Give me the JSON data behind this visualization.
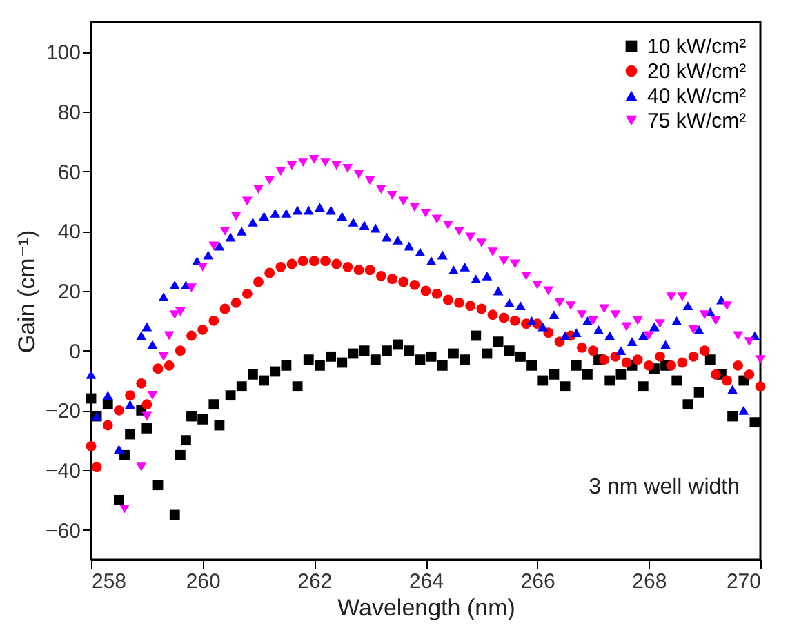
{
  "chart_data": {
    "type": "scatter",
    "xlabel": "Wavelength (nm)",
    "ylabel": "Gain (cm⁻¹)",
    "xlim": [
      258,
      270
    ],
    "ylim": [
      -70,
      110
    ],
    "xticks": [
      258,
      260,
      262,
      264,
      266,
      268,
      270
    ],
    "yticks": [
      -60,
      -40,
      -20,
      0,
      20,
      40,
      60,
      80,
      100
    ],
    "grid": false,
    "legend": "top right",
    "annotations": [
      "3 nm well width"
    ],
    "series": [
      {
        "name": "10 kW/cm²",
        "color": "#000000",
        "marker": "square",
        "x": [
          258.0,
          258.1,
          258.3,
          258.5,
          258.6,
          258.7,
          258.9,
          259.0,
          259.2,
          259.5,
          259.6,
          259.7,
          259.8,
          260.0,
          260.2,
          260.3,
          260.5,
          260.7,
          260.9,
          261.1,
          261.3,
          261.5,
          261.7,
          261.9,
          262.1,
          262.3,
          262.5,
          262.7,
          262.9,
          263.1,
          263.3,
          263.5,
          263.7,
          263.9,
          264.1,
          264.3,
          264.5,
          264.7,
          264.9,
          265.1,
          265.3,
          265.5,
          265.7,
          265.9,
          266.1,
          266.3,
          266.5,
          266.7,
          266.9,
          267.1,
          267.3,
          267.5,
          267.7,
          267.9,
          268.1,
          268.3,
          268.5,
          268.7,
          268.9,
          269.1,
          269.3,
          269.5,
          269.7,
          269.9
        ],
        "values": [
          -16,
          -22,
          -18,
          -50,
          -35,
          -28,
          -20,
          -26,
          -45,
          -55,
          -35,
          -30,
          -22,
          -23,
          -18,
          -25,
          -15,
          -12,
          -8,
          -10,
          -7,
          -5,
          -12,
          -3,
          -5,
          -2,
          -4,
          -1,
          0,
          -3,
          0,
          2,
          0,
          -3,
          -2,
          -5,
          -1,
          -3,
          5,
          -1,
          3,
          0,
          -2,
          -5,
          -10,
          -8,
          -12,
          -5,
          -8,
          -3,
          -10,
          -8,
          -5,
          -12,
          -6,
          -5,
          -10,
          -18,
          -14,
          -3,
          -8,
          -22,
          -10,
          -24
        ]
      },
      {
        "name": "20 kW/cm²",
        "color": "#ff0000",
        "marker": "circle",
        "x": [
          258.0,
          258.1,
          258.3,
          258.5,
          258.7,
          258.9,
          259.0,
          259.2,
          259.4,
          259.6,
          259.8,
          260.0,
          260.2,
          260.4,
          260.6,
          260.8,
          261.0,
          261.2,
          261.4,
          261.6,
          261.8,
          262.0,
          262.2,
          262.4,
          262.6,
          262.8,
          263.0,
          263.2,
          263.4,
          263.6,
          263.8,
          264.0,
          264.2,
          264.4,
          264.6,
          264.8,
          265.0,
          265.2,
          265.4,
          265.6,
          265.8,
          266.0,
          266.2,
          266.4,
          266.6,
          266.8,
          267.0,
          267.2,
          267.4,
          267.6,
          267.8,
          268.0,
          268.2,
          268.4,
          268.6,
          268.8,
          269.0,
          269.2,
          269.4,
          269.6,
          269.8,
          270.0
        ],
        "values": [
          -32,
          -39,
          -25,
          -20,
          -15,
          -11,
          -18,
          -6,
          -5,
          0,
          5,
          7,
          10,
          14,
          16,
          19,
          23,
          26,
          28,
          29,
          30,
          30,
          30,
          29,
          28,
          27,
          27,
          25,
          24,
          23,
          22,
          20,
          19,
          17,
          16,
          15,
          14,
          12,
          11,
          10,
          9,
          9,
          6,
          3,
          5,
          1,
          0,
          -3,
          -2,
          -4,
          -3,
          -5,
          -2,
          -5,
          -4,
          -2,
          0,
          -8,
          -10,
          -5,
          -8,
          -12
        ]
      },
      {
        "name": "40 kW/cm²",
        "color": "#0000ff",
        "marker": "triangle",
        "x": [
          258.0,
          258.1,
          258.3,
          258.5,
          258.7,
          258.9,
          259.0,
          259.1,
          259.3,
          259.5,
          259.7,
          259.9,
          260.1,
          260.3,
          260.5,
          260.7,
          260.9,
          261.1,
          261.3,
          261.5,
          261.7,
          261.9,
          262.1,
          262.3,
          262.5,
          262.7,
          262.9,
          263.1,
          263.3,
          263.5,
          263.7,
          263.9,
          264.1,
          264.3,
          264.5,
          264.7,
          264.9,
          265.1,
          265.3,
          265.5,
          265.7,
          265.9,
          266.1,
          266.3,
          266.5,
          266.7,
          266.9,
          267.1,
          267.3,
          267.5,
          267.7,
          267.9,
          268.1,
          268.3,
          268.5,
          268.7,
          268.9,
          269.1,
          269.3,
          269.5,
          269.7,
          269.9
        ],
        "values": [
          -8,
          -22,
          -15,
          -33,
          -18,
          5,
          8,
          2,
          18,
          22,
          22,
          30,
          32,
          35,
          38,
          40,
          43,
          45,
          46,
          46,
          47,
          47,
          48,
          47,
          45,
          43,
          42,
          41,
          38,
          37,
          35,
          33,
          30,
          32,
          27,
          28,
          24,
          25,
          20,
          16,
          15,
          10,
          8,
          12,
          5,
          6,
          10,
          7,
          5,
          0,
          3,
          5,
          8,
          2,
          10,
          15,
          7,
          13,
          17,
          -13,
          -20,
          5
        ]
      },
      {
        "name": "75 kW/cm²",
        "color": "#ff00ff",
        "marker": "triangle-down",
        "x": [
          258.6,
          258.9,
          259.0,
          259.1,
          259.3,
          259.4,
          259.5,
          259.6,
          259.8,
          260.0,
          260.2,
          260.4,
          260.6,
          260.8,
          261.0,
          261.2,
          261.4,
          261.6,
          261.8,
          262.0,
          262.2,
          262.4,
          262.6,
          262.8,
          263.0,
          263.2,
          263.4,
          263.6,
          263.8,
          264.0,
          264.2,
          264.4,
          264.6,
          264.8,
          265.0,
          265.2,
          265.4,
          265.6,
          265.8,
          266.0,
          266.2,
          266.4,
          266.6,
          266.8,
          267.0,
          267.2,
          267.4,
          267.6,
          267.8,
          268.0,
          268.2,
          268.4,
          268.6,
          268.8,
          269.0,
          269.2,
          269.4,
          269.6,
          269.8,
          270.0
        ],
        "values": [
          -53,
          -39,
          -22,
          -15,
          -2,
          5,
          12,
          13,
          21,
          28,
          35,
          40,
          45,
          50,
          54,
          57,
          60,
          62,
          63,
          64,
          63,
          62,
          61,
          59,
          57,
          54,
          52,
          50,
          48,
          46,
          44,
          42,
          40,
          38,
          36,
          33,
          30,
          29,
          25,
          22,
          20,
          16,
          15,
          12,
          10,
          14,
          12,
          8,
          10,
          5,
          9,
          18,
          18,
          7,
          12,
          10,
          15,
          5,
          3,
          -3
        ]
      }
    ]
  }
}
